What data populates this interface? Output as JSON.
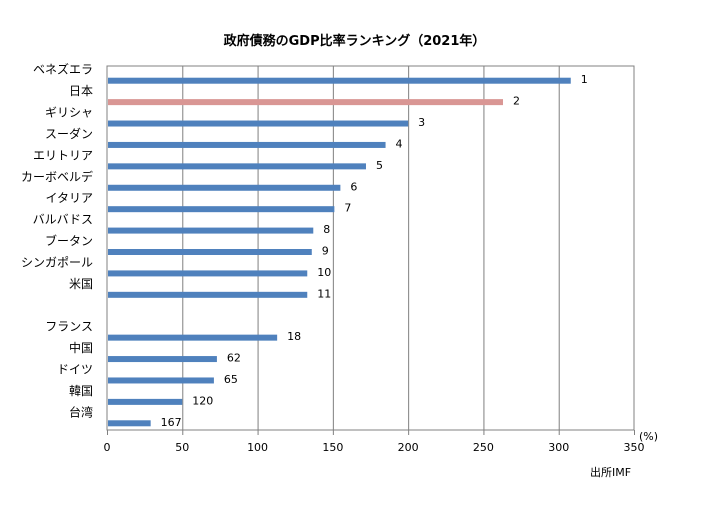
{
  "chart_data": {
    "type": "bar",
    "orientation": "horizontal",
    "title": "政府債務のGDP比率ランキング（2021年）",
    "xlabel": "",
    "ylabel": "",
    "unit_label": "(%)",
    "source": "出所IMF",
    "xlim": [
      0,
      350
    ],
    "x_ticks": [
      0,
      50,
      100,
      150,
      200,
      250,
      300,
      350
    ],
    "grid": true,
    "legend": "none",
    "categories": [
      "ベネズエラ",
      "日本",
      "ギリシャ",
      "スーダン",
      "エリトリア",
      "カーボベルデ",
      "イタリア",
      "バルバドス",
      "ブータン",
      "シンガポール",
      "米国",
      "",
      "フランス",
      "中国",
      "ドイツ",
      "韓国",
      "台湾"
    ],
    "values": [
      308,
      263,
      200,
      185,
      172,
      155,
      151,
      137,
      136,
      133,
      133,
      null,
      113,
      73,
      71,
      50,
      29
    ],
    "rank_labels": [
      "1",
      "2",
      "3",
      "4",
      "5",
      "6",
      "7",
      "8",
      "9",
      "10",
      "11",
      "",
      "18",
      "62",
      "65",
      "120",
      "167"
    ],
    "highlight_index": 1,
    "colors": {
      "default": "#4f81bd",
      "highlight": "#d99694",
      "grid": "#808080",
      "border": "#808080"
    }
  }
}
